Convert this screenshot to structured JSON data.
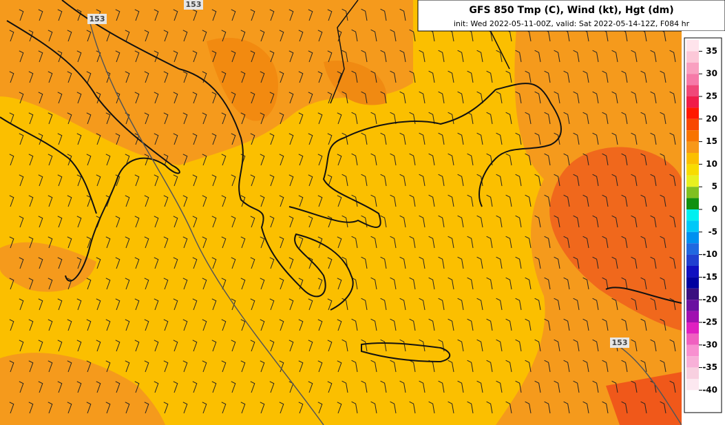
{
  "header": {
    "title": "GFS 850 Tmp (C), Wind (kt), Hgt (dm)",
    "subtitle": "init: Wed 2022-05-11-00Z, valid: Sat 2022-05-14-12Z, F084 hr"
  },
  "contour_labels": [
    "153",
    "153",
    "153"
  ],
  "legend": {
    "ticks": [
      35,
      30,
      25,
      20,
      15,
      10,
      5,
      0,
      -5,
      -10,
      -15,
      -20,
      -25,
      -30,
      -35,
      -40
    ],
    "colors": [
      "#ffe4ec",
      "#fcc8d8",
      "#f9a0c0",
      "#f67aa8",
      "#f04878",
      "#f01c48",
      "#ff1800",
      "#f84800",
      "#f87400",
      "#f89818",
      "#fbbf00",
      "#f8dc00",
      "#e8f020",
      "#80c020",
      "#109010",
      "#00f0f0",
      "#00c8f8",
      "#0090f0",
      "#2068e0",
      "#2040d0",
      "#1010c0",
      "#0000a0",
      "#3a1080",
      "#6a10a0",
      "#a010b0",
      "#e020c0",
      "#f060c0",
      "#f890d0",
      "#f8b0d8",
      "#f8d0e0",
      "#fce8f0",
      "#ffffff"
    ]
  }
}
